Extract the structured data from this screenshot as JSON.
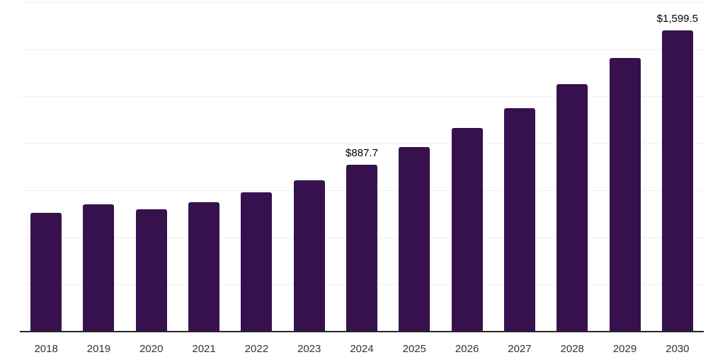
{
  "chart_data": {
    "type": "bar",
    "title": "",
    "xlabel": "",
    "ylabel": "",
    "categories": [
      "2018",
      "2019",
      "2020",
      "2021",
      "2022",
      "2023",
      "2024",
      "2025",
      "2026",
      "2027",
      "2028",
      "2029",
      "2030"
    ],
    "values": [
      630,
      677,
      648,
      686,
      738,
      803,
      887.7,
      979,
      1081,
      1186,
      1313,
      1452,
      1599.5
    ],
    "bar_labels": [
      "",
      "",
      "",
      "",
      "",
      "",
      "$887.7",
      "",
      "",
      "",
      "",
      "",
      "$1,599.5"
    ],
    "ylim": [
      0,
      1750
    ],
    "gridline_step": 250,
    "grid": "horizontal",
    "legend": "none",
    "y_axis_labels_visible": false,
    "bar_color": "#36114E",
    "axis_line_color": "#262626",
    "gridline_color": "#efefef",
    "tick_label_color": "#333333",
    "value_label_color": "#000000",
    "background_color": "#ffffff"
  }
}
